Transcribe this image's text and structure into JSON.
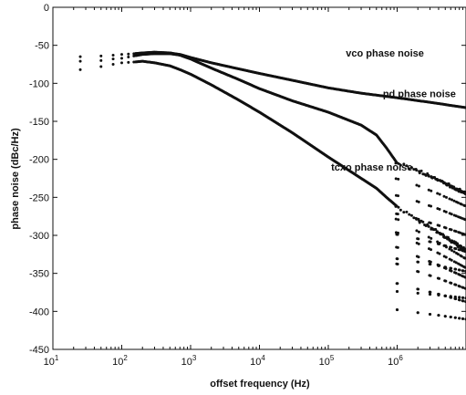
{
  "chart_data": {
    "type": "scatter",
    "xlabel": "offset frequency (Hz)",
    "ylabel": "phase noise (dBc/Hz)",
    "xscale": "log",
    "xlim": [
      10,
      10000000
    ],
    "ylim": [
      -450,
      0
    ],
    "xticks": [
      10,
      100,
      1000,
      10000,
      100000,
      1000000
    ],
    "x_tick_labels": [
      {
        "base": "10",
        "exp": "1"
      },
      {
        "base": "10",
        "exp": "2"
      },
      {
        "base": "10",
        "exp": "3"
      },
      {
        "base": "10",
        "exp": "4"
      },
      {
        "base": "10",
        "exp": "5"
      },
      {
        "base": "10",
        "exp": "6"
      }
    ],
    "yticks": [
      0,
      -50,
      -100,
      -150,
      -200,
      -250,
      -300,
      -350,
      -400,
      -450
    ],
    "y_tick_labels": [
      "0",
      "-50",
      "-100",
      "-150",
      "-200",
      "-250",
      "-300",
      "-350",
      "-400",
      "-450"
    ],
    "grid": false,
    "marker_color": "#111111",
    "series": [
      {
        "name": "vco phase noise",
        "kind": "smooth",
        "points": [
          [
            25,
            -65
          ],
          [
            50,
            -64
          ],
          [
            75,
            -63
          ],
          [
            100,
            -62
          ],
          [
            150,
            -61
          ],
          [
            200,
            -60
          ],
          [
            300,
            -59
          ],
          [
            500,
            -60
          ],
          [
            700,
            -62
          ],
          [
            1000,
            -66
          ],
          [
            2000,
            -73
          ],
          [
            5000,
            -81
          ],
          [
            10000,
            -87
          ],
          [
            30000,
            -96
          ],
          [
            100000,
            -106
          ],
          [
            300000,
            -113
          ],
          [
            1000000,
            -119
          ],
          [
            3000000,
            -125
          ],
          [
            10000000,
            -132
          ]
        ]
      },
      {
        "name": "pd phase noise",
        "kind": "notched",
        "points": [
          [
            25,
            -71
          ],
          [
            50,
            -70
          ],
          [
            75,
            -68
          ],
          [
            100,
            -67
          ],
          [
            150,
            -64
          ],
          [
            200,
            -62
          ],
          [
            300,
            -61
          ],
          [
            500,
            -61
          ],
          [
            700,
            -63
          ],
          [
            1000,
            -68
          ],
          [
            2000,
            -80
          ],
          [
            5000,
            -95
          ],
          [
            10000,
            -107
          ],
          [
            30000,
            -123
          ],
          [
            100000,
            -138
          ],
          [
            300000,
            -155
          ],
          [
            500000,
            -168
          ],
          [
            700000,
            -185
          ],
          [
            1000000,
            -205
          ]
        ],
        "notch_envelope": [
          [
            1000000,
            -205
          ],
          [
            2000000,
            -215
          ],
          [
            4000000,
            -227
          ],
          [
            10000000,
            -245
          ]
        ],
        "notch_depth": 180,
        "notch_floor": -420
      },
      {
        "name": "tcxo phase noise",
        "kind": "notched",
        "points": [
          [
            25,
            -82
          ],
          [
            50,
            -78
          ],
          [
            75,
            -75
          ],
          [
            100,
            -73
          ],
          [
            150,
            -72
          ],
          [
            200,
            -71
          ],
          [
            300,
            -73
          ],
          [
            500,
            -77
          ],
          [
            700,
            -82
          ],
          [
            1000,
            -88
          ],
          [
            2000,
            -102
          ],
          [
            5000,
            -122
          ],
          [
            10000,
            -138
          ],
          [
            30000,
            -165
          ],
          [
            100000,
            -197
          ],
          [
            300000,
            -225
          ],
          [
            500000,
            -238
          ],
          [
            700000,
            -250
          ],
          [
            1000000,
            -262
          ]
        ],
        "notch_envelope": [
          [
            1000000,
            -262
          ],
          [
            2000000,
            -280
          ],
          [
            4000000,
            -296
          ],
          [
            10000000,
            -320
          ]
        ],
        "notch_depth": 150,
        "notch_floor": -435
      }
    ],
    "annotations": [
      {
        "text": "vco phase noise",
        "x": 180000,
        "y": -65
      },
      {
        "text": "pd phase noise",
        "x": 620000,
        "y": -118
      },
      {
        "text": "tcxo phase noise",
        "x": 110000,
        "y": -215
      }
    ]
  }
}
